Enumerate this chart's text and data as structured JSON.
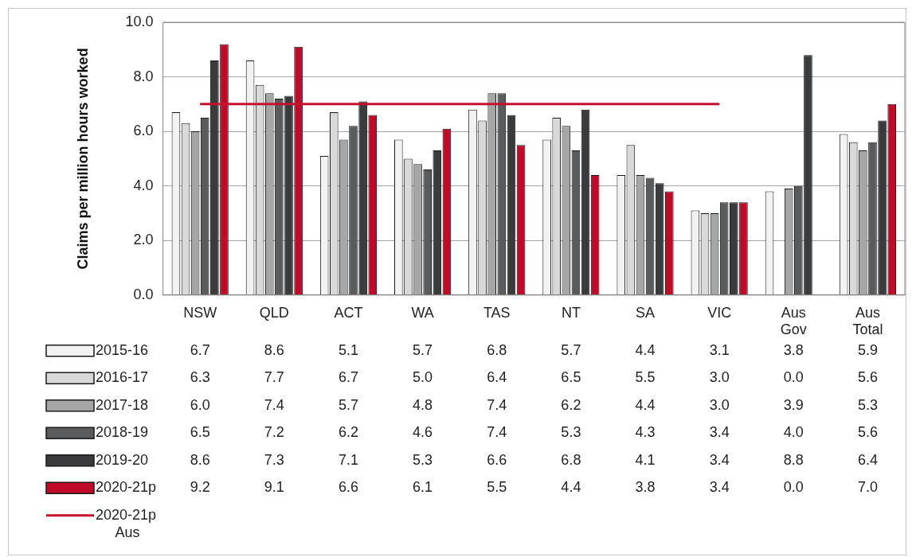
{
  "chart_data": {
    "type": "bar",
    "ylabel": "Claims per million hours worked",
    "categories": [
      "NSW",
      "QLD",
      "ACT",
      "WA",
      "TAS",
      "NT",
      "SA",
      "VIC",
      "Aus Gov",
      "Aus Total"
    ],
    "series": [
      {
        "name": "2015-16",
        "color": "#f2f2f2",
        "values": [
          6.7,
          8.6,
          5.1,
          5.7,
          6.8,
          5.7,
          4.4,
          3.1,
          3.8,
          5.9
        ],
        "value_labels": [
          "6.7",
          "8.6",
          "5.1",
          "5.7",
          "6.8",
          "5.7",
          "4.4",
          "3.1",
          "3.8",
          "5.9"
        ]
      },
      {
        "name": "2016-17",
        "color": "#d9d9d9",
        "values": [
          6.3,
          7.7,
          6.7,
          5.0,
          6.4,
          6.5,
          5.5,
          3.0,
          0.0,
          5.6
        ],
        "value_labels": [
          "6.3",
          "7.7",
          "6.7",
          "5.0",
          "6.4",
          "6.5",
          "5.5",
          "3.0",
          "0.0",
          "5.6"
        ]
      },
      {
        "name": "2017-18",
        "color": "#a6a6a6",
        "values": [
          6.0,
          7.4,
          5.7,
          4.8,
          7.4,
          6.2,
          4.4,
          3.0,
          3.9,
          5.3
        ],
        "value_labels": [
          "6.0",
          "7.4",
          "5.7",
          "4.8",
          "7.4",
          "6.2",
          "4.4",
          "3.0",
          "3.9",
          "5.3"
        ]
      },
      {
        "name": "2018-19",
        "color": "#5a5b5d",
        "values": [
          6.5,
          7.2,
          6.2,
          4.6,
          7.4,
          5.3,
          4.3,
          3.4,
          4.0,
          5.6
        ],
        "value_labels": [
          "6.5",
          "7.2",
          "6.2",
          "4.6",
          "7.4",
          "5.3",
          "4.3",
          "3.4",
          "4.0",
          "5.6"
        ]
      },
      {
        "name": "2019-20",
        "color": "#3a3b3d",
        "values": [
          8.6,
          7.3,
          7.1,
          5.3,
          6.6,
          6.8,
          4.1,
          3.4,
          8.8,
          6.4
        ],
        "value_labels": [
          "8.6",
          "7.3",
          "7.1",
          "5.3",
          "6.6",
          "6.8",
          "4.1",
          "3.4",
          "8.8",
          "6.4"
        ]
      },
      {
        "name": "2020-21p",
        "color": "#c00a27",
        "values": [
          9.2,
          9.1,
          6.6,
          6.1,
          5.5,
          4.4,
          3.8,
          3.4,
          0.0,
          7.0
        ],
        "value_labels": [
          "9.2",
          "9.1",
          "6.6",
          "6.1",
          "5.5",
          "4.4",
          "3.8",
          "3.4",
          "0.0",
          "7.0"
        ]
      },
      {
        "name": "2020-21p Aus",
        "type": "line",
        "color": "#c8102e",
        "values": [
          7.0,
          7.0,
          7.0,
          7.0,
          7.0,
          7.0,
          7.0,
          7.0,
          null,
          null
        ]
      }
    ],
    "ylim": [
      0,
      10
    ],
    "yticks": [
      {
        "value": 0,
        "label": "0.0"
      },
      {
        "value": 2,
        "label": "2.0"
      },
      {
        "value": 4,
        "label": "4.0"
      },
      {
        "value": 6,
        "label": "6.0"
      },
      {
        "value": 8,
        "label": "8.0"
      },
      {
        "value": 10,
        "label": "10.0"
      }
    ],
    "grid": "y",
    "legend": "bottom left",
    "marker": "none",
    "line_style": "solid"
  }
}
